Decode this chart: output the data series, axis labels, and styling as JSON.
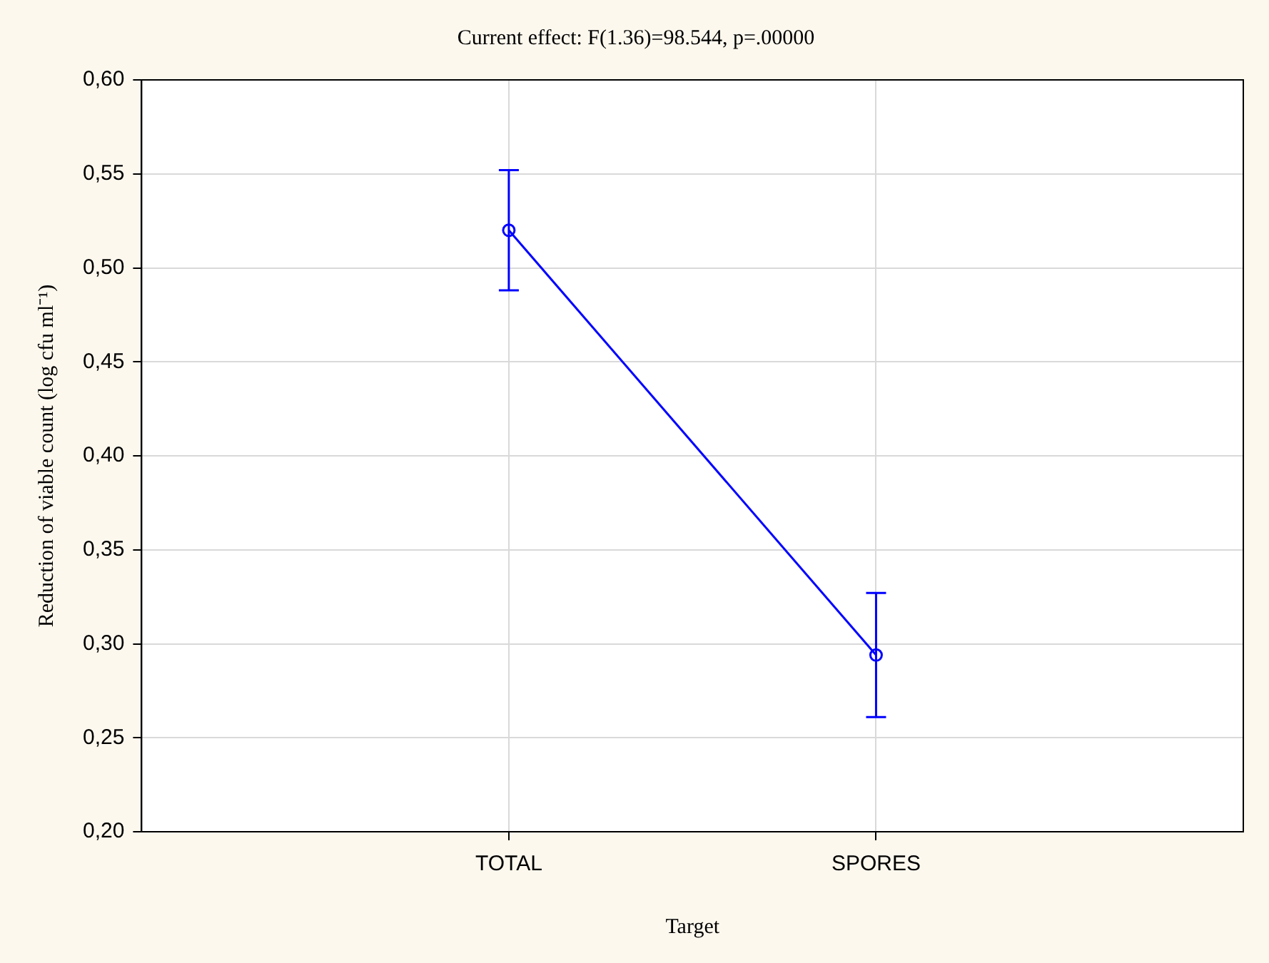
{
  "chart_data": {
    "type": "line",
    "title": "Current effect: F(1.36)=98.544, p=.00000",
    "xlabel": "Target",
    "ylabel": "Reduction of viable count (log cfu ml⁻¹)",
    "categories": [
      "TOTAL",
      "SPORES"
    ],
    "series": [
      {
        "color": "#0000ff",
        "values": [
          0.52,
          0.294
        ],
        "errors": [
          0.032,
          0.033
        ]
      }
    ],
    "ylim": [
      0.2,
      0.6
    ],
    "yticks": [
      {
        "value": 0.2,
        "label": "0,20"
      },
      {
        "value": 0.25,
        "label": "0,25"
      },
      {
        "value": 0.3,
        "label": "0,30"
      },
      {
        "value": 0.35,
        "label": "0,35"
      },
      {
        "value": 0.4,
        "label": "0,40"
      },
      {
        "value": 0.45,
        "label": "0,45"
      },
      {
        "value": 0.5,
        "label": "0,50"
      },
      {
        "value": 0.55,
        "label": "0,55"
      },
      {
        "value": 0.6,
        "label": "0,60"
      }
    ],
    "grid": true,
    "legend": false,
    "marker": "circle",
    "line_style": "solid"
  }
}
